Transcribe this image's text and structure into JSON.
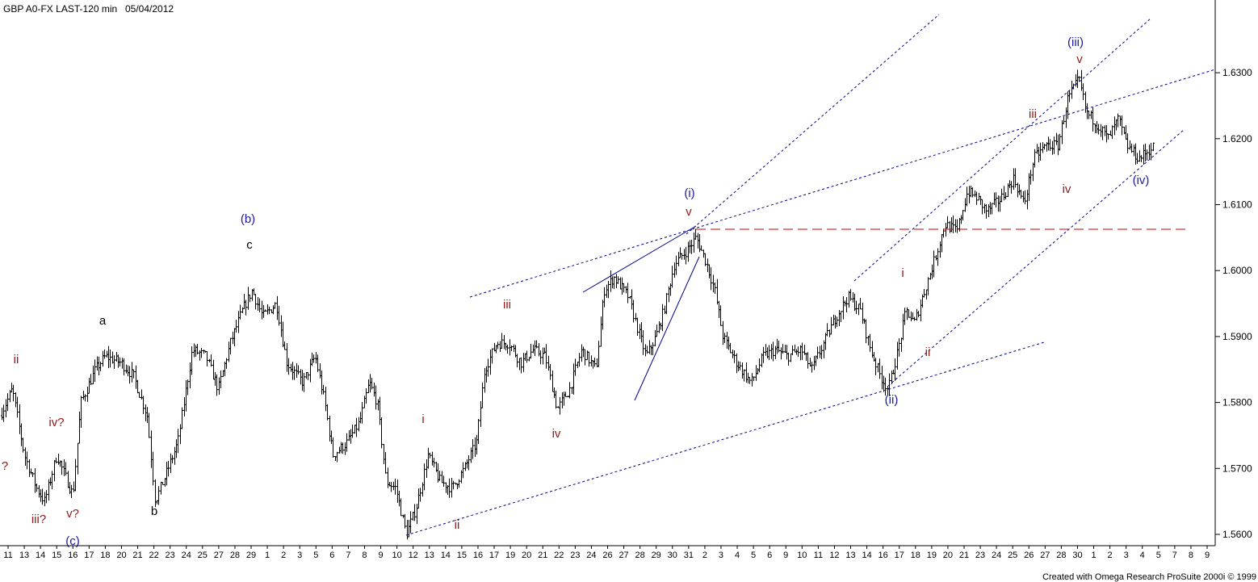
{
  "header": {
    "symbol_label": "GBP A0-FX LAST-120 min",
    "date_label": "05/04/2012"
  },
  "footer": {
    "credit": "Created with Omega Research ProSuite 2000i © 1999"
  },
  "colors": {
    "bars": "#000000",
    "trendline": "#00008b",
    "resistance": "#cc0000",
    "label_blue": "#1a1aa6",
    "label_red": "#8b1a1a",
    "label_black": "#000000"
  },
  "chart_data": {
    "type": "ohlc",
    "title": "GBP A0-FX LAST-120 min",
    "ylim": [
      1.5585,
      1.6385
    ],
    "y_ticks": [
      "1.5600",
      "1.5700",
      "1.5800",
      "1.5900",
      "1.6000",
      "1.6100",
      "1.6200",
      "1.6300"
    ],
    "x_tick_labels": [
      "11",
      "13",
      "14",
      "15",
      "16",
      "17",
      "18",
      "20",
      "21",
      "22",
      "23",
      "24",
      "25",
      "27",
      "28",
      "29",
      "1",
      "2",
      "3",
      "5",
      "6",
      "7",
      "8",
      "9",
      "10",
      "12",
      "13",
      "14",
      "15",
      "16",
      "17",
      "19",
      "20",
      "21",
      "22",
      "23",
      "24",
      "26",
      "27",
      "28",
      "29",
      "30",
      "31",
      "2",
      "3",
      "4",
      "5",
      "6",
      "9",
      "10",
      "11",
      "12",
      "13",
      "14",
      "16",
      "17",
      "18",
      "19",
      "20",
      "21",
      "23",
      "24",
      "25",
      "26",
      "27",
      "28",
      "30",
      "1",
      "2",
      "3",
      "4",
      "5",
      "7",
      "8",
      "9"
    ],
    "price_path": [
      [
        0,
        1.578
      ],
      [
        15,
        1.582
      ],
      [
        30,
        1.572
      ],
      [
        45,
        1.567
      ],
      [
        55,
        1.565
      ],
      [
        70,
        1.572
      ],
      [
        90,
        1.566
      ],
      [
        100,
        1.58
      ],
      [
        118,
        1.585
      ],
      [
        130,
        1.587
      ],
      [
        150,
        1.586
      ],
      [
        165,
        1.584
      ],
      [
        182,
        1.578
      ],
      [
        192,
        1.565
      ],
      [
        205,
        1.569
      ],
      [
        220,
        1.574
      ],
      [
        238,
        1.588
      ],
      [
        255,
        1.587
      ],
      [
        270,
        1.582
      ],
      [
        285,
        1.589
      ],
      [
        300,
        1.594
      ],
      [
        312,
        1.597
      ],
      [
        325,
        1.593
      ],
      [
        342,
        1.595
      ],
      [
        355,
        1.586
      ],
      [
        375,
        1.583
      ],
      [
        390,
        1.587
      ],
      [
        402,
        1.58
      ],
      [
        412,
        1.572
      ],
      [
        430,
        1.574
      ],
      [
        445,
        1.577
      ],
      [
        457,
        1.583
      ],
      [
        467,
        1.58
      ],
      [
        478,
        1.568
      ],
      [
        490,
        1.567
      ],
      [
        503,
        1.56
      ],
      [
        515,
        1.564
      ],
      [
        530,
        1.572
      ],
      [
        545,
        1.568
      ],
      [
        560,
        1.567
      ],
      [
        575,
        1.57
      ],
      [
        590,
        1.574
      ],
      [
        600,
        1.585
      ],
      [
        615,
        1.589
      ],
      [
        630,
        1.589
      ],
      [
        645,
        1.586
      ],
      [
        660,
        1.588
      ],
      [
        675,
        1.587
      ],
      [
        690,
        1.579
      ],
      [
        705,
        1.582
      ],
      [
        720,
        1.588
      ],
      [
        738,
        1.585
      ],
      [
        748,
        1.597
      ],
      [
        760,
        1.599
      ],
      [
        778,
        1.596
      ],
      [
        790,
        1.591
      ],
      [
        800,
        1.587
      ],
      [
        812,
        1.59
      ],
      [
        822,
        1.594
      ],
      [
        835,
        1.601
      ],
      [
        850,
        1.603
      ],
      [
        862,
        1.605
      ],
      [
        875,
        1.601
      ],
      [
        885,
        1.597
      ],
      [
        895,
        1.59
      ],
      [
        912,
        1.586
      ],
      [
        930,
        1.583
      ],
      [
        945,
        1.587
      ],
      [
        960,
        1.588
      ],
      [
        975,
        1.587
      ],
      [
        992,
        1.588
      ],
      [
        1005,
        1.585
      ],
      [
        1020,
        1.589
      ],
      [
        1035,
        1.593
      ],
      [
        1050,
        1.596
      ],
      [
        1065,
        1.594
      ],
      [
        1078,
        1.588
      ],
      [
        1090,
        1.584
      ],
      [
        1100,
        1.582
      ],
      [
        1112,
        1.588
      ],
      [
        1122,
        1.594
      ],
      [
        1132,
        1.592
      ],
      [
        1145,
        1.597
      ],
      [
        1158,
        1.602
      ],
      [
        1170,
        1.607
      ],
      [
        1185,
        1.606
      ],
      [
        1198,
        1.612
      ],
      [
        1210,
        1.611
      ],
      [
        1222,
        1.609
      ],
      [
        1240,
        1.611
      ],
      [
        1255,
        1.614
      ],
      [
        1268,
        1.61
      ],
      [
        1280,
        1.617
      ],
      [
        1295,
        1.619
      ],
      [
        1310,
        1.619
      ],
      [
        1322,
        1.626
      ],
      [
        1336,
        1.629
      ],
      [
        1345,
        1.624
      ],
      [
        1360,
        1.622
      ],
      [
        1372,
        1.62
      ],
      [
        1385,
        1.623
      ],
      [
        1395,
        1.619
      ],
      [
        1410,
        1.617
      ],
      [
        1430,
        1.619
      ]
    ]
  },
  "wave_labels": [
    {
      "text": "ii",
      "color": "red",
      "x": 20,
      "y": 450
    },
    {
      "text": "?",
      "color": "red",
      "x": 6,
      "y": 582
    },
    {
      "text": "iv?",
      "color": "red",
      "x": 70,
      "y": 528
    },
    {
      "text": "iii?",
      "color": "red",
      "x": 48,
      "y": 648
    },
    {
      "text": "v?",
      "color": "red",
      "x": 90,
      "y": 641
    },
    {
      "text": "(c)",
      "color": "blue",
      "x": 90,
      "y": 675
    },
    {
      "text": "a",
      "color": "black",
      "x": 127,
      "y": 402
    },
    {
      "text": "b",
      "color": "black",
      "x": 191,
      "y": 638
    },
    {
      "text": "(b)",
      "color": "blue",
      "x": 307,
      "y": 276
    },
    {
      "text": "c",
      "color": "black",
      "x": 309,
      "y": 308
    },
    {
      "text": "i",
      "color": "red",
      "x": 524,
      "y": 524
    },
    {
      "text": "ii",
      "color": "red",
      "x": 566,
      "y": 655
    },
    {
      "text": "iii",
      "color": "red",
      "x": 628,
      "y": 382
    },
    {
      "text": "iv",
      "color": "red",
      "x": 689,
      "y": 542
    },
    {
      "text": "(i)",
      "color": "blue",
      "x": 854,
      "y": 244
    },
    {
      "text": "v",
      "color": "red",
      "x": 853,
      "y": 267
    },
    {
      "text": "(ii)",
      "color": "blue",
      "x": 1104,
      "y": 500
    },
    {
      "text": "i",
      "color": "red",
      "x": 1118,
      "y": 343
    },
    {
      "text": "ii",
      "color": "red",
      "x": 1149,
      "y": 441
    },
    {
      "text": "iii",
      "color": "red",
      "x": 1279,
      "y": 146
    },
    {
      "text": "iv",
      "color": "red",
      "x": 1321,
      "y": 239
    },
    {
      "text": "(iii)",
      "color": "blue",
      "x": 1332,
      "y": 57
    },
    {
      "text": "v",
      "color": "red",
      "x": 1337,
      "y": 78
    },
    {
      "text": "(iv)",
      "color": "blue",
      "x": 1413,
      "y": 228
    }
  ]
}
